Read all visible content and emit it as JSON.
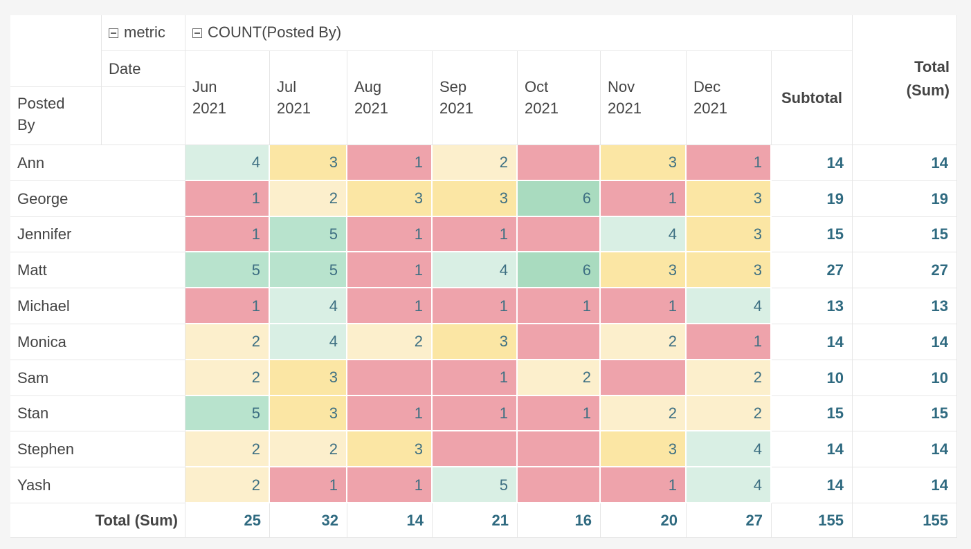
{
  "header": {
    "metric_label": "metric",
    "count_label": "COUNT(Posted By)",
    "date_label": "Date",
    "posted_by_label": "Posted By",
    "subtotal_label": "Subtotal",
    "total_label": "Total (Sum)"
  },
  "columns": [
    "Jun 2021",
    "Jul 2021",
    "Aug 2021",
    "Sep 2021",
    "Oct 2021",
    "Nov 2021",
    "Dec 2021"
  ],
  "rows": [
    {
      "name": "Ann",
      "values": [
        "4",
        "3",
        "1",
        "2",
        "",
        "3",
        "1"
      ],
      "subtotal": "14",
      "total": "14"
    },
    {
      "name": "George",
      "values": [
        "1",
        "2",
        "3",
        "3",
        "6",
        "1",
        "3"
      ],
      "subtotal": "19",
      "total": "19"
    },
    {
      "name": "Jennifer",
      "values": [
        "1",
        "5",
        "1",
        "1",
        "",
        "4",
        "3"
      ],
      "subtotal": "15",
      "total": "15"
    },
    {
      "name": "Matt",
      "values": [
        "5",
        "5",
        "1",
        "4",
        "6",
        "3",
        "3"
      ],
      "subtotal": "27",
      "total": "27"
    },
    {
      "name": "Michael",
      "values": [
        "1",
        "4",
        "1",
        "1",
        "1",
        "1",
        "4"
      ],
      "subtotal": "13",
      "total": "13"
    },
    {
      "name": "Monica",
      "values": [
        "2",
        "4",
        "2",
        "3",
        "",
        "2",
        "1"
      ],
      "subtotal": "14",
      "total": "14"
    },
    {
      "name": "Sam",
      "values": [
        "2",
        "3",
        "",
        "1",
        "2",
        "",
        "2"
      ],
      "subtotal": "10",
      "total": "10"
    },
    {
      "name": "Stan",
      "values": [
        "5",
        "3",
        "1",
        "1",
        "1",
        "2",
        "2"
      ],
      "subtotal": "15",
      "total": "15"
    },
    {
      "name": "Stephen",
      "values": [
        "2",
        "2",
        "3",
        "",
        "",
        "3",
        "4"
      ],
      "subtotal": "14",
      "total": "14"
    },
    {
      "name": "Yash",
      "values": [
        "2",
        "1",
        "1",
        "5",
        "",
        "1",
        "4"
      ],
      "subtotal": "14",
      "total": "14"
    }
  ],
  "totals": {
    "label": "Total (Sum)",
    "values": [
      "25",
      "32",
      "14",
      "21",
      "16",
      "20",
      "27"
    ],
    "subtotal": "155",
    "total": "155"
  },
  "colors": {
    "red": "#eea3ab",
    "yellow": "#fbe6a4",
    "light_yellow": "#fcefcc",
    "light_green": "#d9efe4",
    "green": "#b8e3cd",
    "strong_green": "#a9dbbf"
  },
  "cell_colors": [
    [
      "light_green",
      "yellow",
      "red",
      "light_yellow",
      "red",
      "yellow",
      "red"
    ],
    [
      "red",
      "light_yellow",
      "yellow",
      "yellow",
      "strong_green",
      "red",
      "yellow"
    ],
    [
      "red",
      "green",
      "red",
      "red",
      "red",
      "light_green",
      "yellow"
    ],
    [
      "green",
      "green",
      "red",
      "light_green",
      "strong_green",
      "yellow",
      "yellow"
    ],
    [
      "red",
      "light_green",
      "red",
      "red",
      "red",
      "red",
      "light_green"
    ],
    [
      "light_yellow",
      "light_green",
      "light_yellow",
      "yellow",
      "red",
      "light_yellow",
      "red"
    ],
    [
      "light_yellow",
      "yellow",
      "red",
      "red",
      "light_yellow",
      "red",
      "light_yellow"
    ],
    [
      "green",
      "yellow",
      "red",
      "red",
      "red",
      "light_yellow",
      "light_yellow"
    ],
    [
      "light_yellow",
      "light_yellow",
      "yellow",
      "red",
      "red",
      "yellow",
      "light_green"
    ],
    [
      "light_yellow",
      "red",
      "red",
      "light_green",
      "red",
      "red",
      "light_green"
    ]
  ]
}
